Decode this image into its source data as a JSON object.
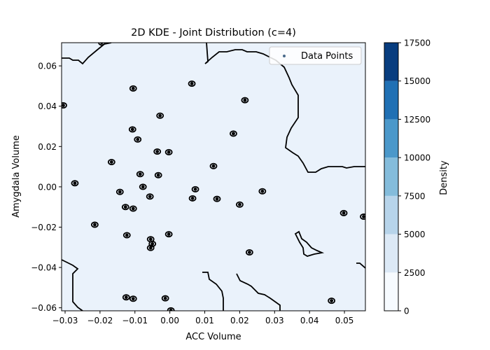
{
  "chart_data": {
    "type": "kde-contour",
    "title": "2D KDE - Joint Distribution (c=4)",
    "xlabel": "ACC Volume",
    "ylabel": "Amygdala Volume",
    "xlim": [
      -0.031,
      0.056
    ],
    "ylim": [
      -0.0615,
      0.0715
    ],
    "x_ticks": [
      -0.03,
      -0.02,
      -0.01,
      0.0,
      0.01,
      0.02,
      0.03,
      0.04,
      0.05
    ],
    "x_tick_labels": [
      "−0.03",
      "−0.02",
      "−0.01",
      "0.00",
      "0.01",
      "0.02",
      "0.03",
      "0.04",
      "0.05"
    ],
    "y_ticks": [
      -0.06,
      -0.04,
      -0.02,
      0.0,
      0.02,
      0.04,
      0.06
    ],
    "y_tick_labels": [
      "−0.06",
      "−0.04",
      "−0.02",
      "0.00",
      "0.02",
      "0.04",
      "0.06"
    ],
    "legend": {
      "label": "Data Points",
      "position": "top-right"
    },
    "colorbar": {
      "label": "Density",
      "levels": [
        0,
        2500,
        5000,
        7500,
        10000,
        12500,
        15000,
        17500
      ],
      "tick_labels": [
        "0",
        "2500",
        "5000",
        "7500",
        "10000",
        "12500",
        "15000",
        "17500"
      ],
      "colors": [
        "#f7fbff",
        "#dce9f6",
        "#b7d4ea",
        "#84bcdb",
        "#4b98ca",
        "#2070b4",
        "#083d7f"
      ]
    },
    "grid": false,
    "background_fill": "#eaf2fb",
    "contour_color": "#000000",
    "points": [
      [
        -0.0305,
        0.0404
      ],
      [
        -0.0105,
        0.0488
      ],
      [
        0.0063,
        0.0512
      ],
      [
        -0.0195,
        0.0716
      ],
      [
        0.0215,
        0.043
      ],
      [
        -0.0028,
        0.0353
      ],
      [
        0.0182,
        0.0264
      ],
      [
        -0.0107,
        0.0285
      ],
      [
        -0.0092,
        0.0235
      ],
      [
        -0.0036,
        0.0175
      ],
      [
        -0.0003,
        0.0172
      ],
      [
        -0.0167,
        0.0123
      ],
      [
        0.0125,
        0.0103
      ],
      [
        -0.0272,
        0.0018
      ],
      [
        -0.0085,
        0.0063
      ],
      [
        -0.0033,
        0.0058
      ],
      [
        -0.0077,
        0.0
      ],
      [
        -0.0143,
        -0.0025
      ],
      [
        0.0073,
        -0.0012
      ],
      [
        0.0265,
        -0.0022
      ],
      [
        -0.0057,
        -0.0048
      ],
      [
        0.0065,
        -0.0057
      ],
      [
        0.0135,
        -0.006
      ],
      [
        0.02,
        -0.0088
      ],
      [
        -0.0127,
        -0.01
      ],
      [
        -0.0105,
        -0.0108
      ],
      [
        -0.0215,
        -0.0188
      ],
      [
        0.0498,
        -0.013
      ],
      [
        0.0555,
        -0.0148
      ],
      [
        -0.0123,
        -0.024
      ],
      [
        -0.0003,
        -0.0235
      ],
      [
        -0.0055,
        -0.026
      ],
      [
        -0.005,
        -0.0283
      ],
      [
        -0.0055,
        -0.0303
      ],
      [
        0.0228,
        -0.0325
      ],
      [
        -0.0125,
        -0.0548
      ],
      [
        -0.0105,
        -0.0555
      ],
      [
        -0.0013,
        -0.0553
      ],
      [
        0.0463,
        -0.0565
      ],
      [
        0.0003,
        -0.0613
      ]
    ]
  }
}
